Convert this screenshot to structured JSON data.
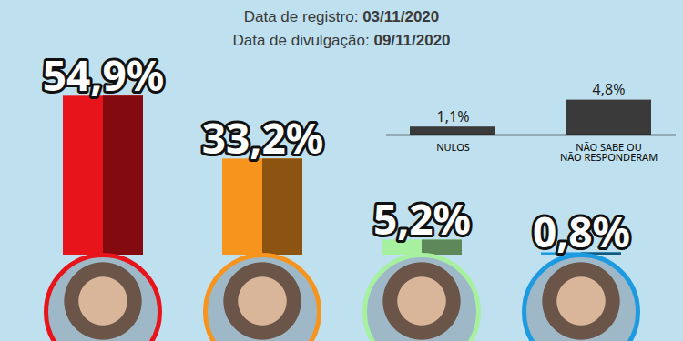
{
  "chart_data": [
    {
      "type": "bar",
      "subtitle": [
        "Data de registro: 03/11/2020",
        "Data de divulgação: 09/11/2020"
      ],
      "categories": [
        null,
        null,
        null,
        null
      ],
      "values": [
        54.9,
        33.2,
        5.2,
        0.8
      ],
      "value_labels": [
        "54,9%",
        "33,2%",
        "5,2%",
        "0,8%"
      ],
      "colors": [
        "#e8141b",
        "#f7941d",
        "#a6f0a0",
        "#1e9be0"
      ],
      "ylim": [
        0,
        55
      ],
      "tick_labels": false,
      "data_labels": true
    },
    {
      "type": "bar",
      "categories": [
        "NULOS",
        "NÃO SABE OU\nNÃO RESPONDERAM"
      ],
      "values": [
        1.1,
        4.8
      ],
      "value_labels": [
        "1,1%",
        "4,8%"
      ],
      "color": "#3a3a3a",
      "ylim": [
        0,
        5
      ],
      "tick_labels": "x",
      "data_labels": true
    }
  ]
}
